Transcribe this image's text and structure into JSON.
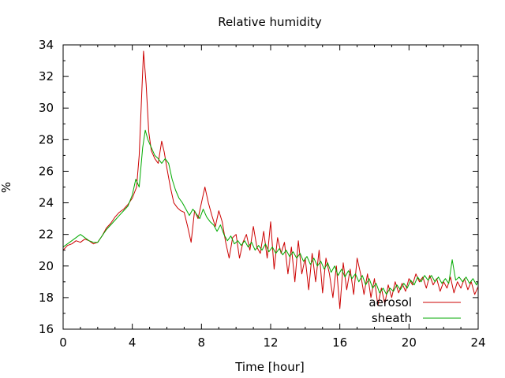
{
  "chart_data": {
    "type": "line",
    "title": "Relative humidity",
    "xlabel": "Time [hour]",
    "ylabel": "%",
    "xlim": [
      0,
      24
    ],
    "ylim": [
      16,
      34
    ],
    "x_ticks": [
      0,
      4,
      8,
      12,
      16,
      20,
      24
    ],
    "y_ticks": [
      16,
      18,
      20,
      22,
      24,
      26,
      28,
      30,
      32,
      34
    ],
    "grid": false,
    "legend_position": "bottom-right",
    "series": [
      {
        "name": "aerosol",
        "color": "#cc0000",
        "points": [
          [
            0.0,
            21.0
          ],
          [
            0.25,
            21.3
          ],
          [
            0.5,
            21.4
          ],
          [
            0.75,
            21.6
          ],
          [
            1.0,
            21.5
          ],
          [
            1.25,
            21.7
          ],
          [
            1.5,
            21.6
          ],
          [
            1.75,
            21.4
          ],
          [
            2.0,
            21.5
          ],
          [
            2.25,
            21.9
          ],
          [
            2.5,
            22.4
          ],
          [
            2.75,
            22.7
          ],
          [
            3.0,
            23.1
          ],
          [
            3.25,
            23.4
          ],
          [
            3.5,
            23.6
          ],
          [
            3.75,
            23.9
          ],
          [
            4.0,
            24.3
          ],
          [
            4.25,
            25.0
          ],
          [
            4.4,
            27.0
          ],
          [
            4.55,
            31.0
          ],
          [
            4.65,
            33.6
          ],
          [
            4.8,
            31.5
          ],
          [
            4.95,
            28.5
          ],
          [
            5.1,
            27.3
          ],
          [
            5.3,
            26.8
          ],
          [
            5.5,
            26.5
          ],
          [
            5.7,
            27.9
          ],
          [
            5.85,
            27.2
          ],
          [
            6.0,
            26.2
          ],
          [
            6.2,
            25.0
          ],
          [
            6.4,
            24.0
          ],
          [
            6.6,
            23.7
          ],
          [
            6.8,
            23.5
          ],
          [
            7.0,
            23.4
          ],
          [
            7.2,
            22.5
          ],
          [
            7.4,
            21.5
          ],
          [
            7.6,
            23.5
          ],
          [
            7.8,
            23.0
          ],
          [
            8.0,
            24.0
          ],
          [
            8.2,
            25.0
          ],
          [
            8.4,
            24.0
          ],
          [
            8.6,
            23.2
          ],
          [
            8.8,
            22.5
          ],
          [
            9.0,
            23.5
          ],
          [
            9.2,
            22.8
          ],
          [
            9.4,
            21.5
          ],
          [
            9.6,
            20.5
          ],
          [
            9.8,
            21.8
          ],
          [
            10.0,
            22.0
          ],
          [
            10.2,
            20.5
          ],
          [
            10.4,
            21.5
          ],
          [
            10.6,
            22.0
          ],
          [
            10.8,
            21.0
          ],
          [
            11.0,
            22.5
          ],
          [
            11.2,
            21.2
          ],
          [
            11.4,
            20.8
          ],
          [
            11.6,
            22.2
          ],
          [
            11.8,
            20.5
          ],
          [
            12.0,
            22.8
          ],
          [
            12.2,
            19.8
          ],
          [
            12.4,
            21.8
          ],
          [
            12.6,
            20.8
          ],
          [
            12.8,
            21.5
          ],
          [
            13.0,
            19.5
          ],
          [
            13.2,
            21.2
          ],
          [
            13.4,
            19.0
          ],
          [
            13.6,
            21.6
          ],
          [
            13.8,
            19.5
          ],
          [
            14.0,
            20.5
          ],
          [
            14.2,
            18.5
          ],
          [
            14.4,
            20.8
          ],
          [
            14.6,
            19.0
          ],
          [
            14.8,
            21.0
          ],
          [
            15.0,
            18.3
          ],
          [
            15.2,
            20.5
          ],
          [
            15.4,
            19.5
          ],
          [
            15.6,
            18.0
          ],
          [
            15.8,
            20.0
          ],
          [
            16.0,
            17.3
          ],
          [
            16.2,
            20.2
          ],
          [
            16.4,
            18.5
          ],
          [
            16.6,
            19.8
          ],
          [
            16.8,
            18.2
          ],
          [
            17.0,
            20.5
          ],
          [
            17.2,
            19.5
          ],
          [
            17.4,
            18.2
          ],
          [
            17.6,
            19.5
          ],
          [
            17.8,
            18.0
          ],
          [
            18.0,
            19.2
          ],
          [
            18.2,
            17.5
          ],
          [
            18.4,
            18.6
          ],
          [
            18.6,
            17.6
          ],
          [
            18.8,
            18.8
          ],
          [
            19.0,
            18.0
          ],
          [
            19.2,
            19.0
          ],
          [
            19.4,
            18.3
          ],
          [
            19.6,
            18.9
          ],
          [
            19.8,
            18.4
          ],
          [
            20.0,
            19.2
          ],
          [
            20.2,
            18.8
          ],
          [
            20.4,
            19.5
          ],
          [
            20.6,
            19.0
          ],
          [
            20.8,
            19.3
          ],
          [
            21.0,
            18.6
          ],
          [
            21.2,
            19.4
          ],
          [
            21.4,
            18.8
          ],
          [
            21.6,
            19.2
          ],
          [
            21.8,
            18.4
          ],
          [
            22.0,
            19.0
          ],
          [
            22.2,
            18.6
          ],
          [
            22.4,
            19.3
          ],
          [
            22.6,
            18.3
          ],
          [
            22.8,
            19.0
          ],
          [
            23.0,
            18.6
          ],
          [
            23.2,
            19.2
          ],
          [
            23.4,
            18.5
          ],
          [
            23.6,
            19.0
          ],
          [
            23.8,
            18.2
          ],
          [
            24.0,
            18.7
          ]
        ]
      },
      {
        "name": "sheath",
        "color": "#00aa00",
        "points": [
          [
            0.0,
            21.2
          ],
          [
            0.25,
            21.4
          ],
          [
            0.5,
            21.6
          ],
          [
            0.75,
            21.8
          ],
          [
            1.0,
            22.0
          ],
          [
            1.25,
            21.8
          ],
          [
            1.5,
            21.6
          ],
          [
            1.75,
            21.5
          ],
          [
            2.0,
            21.5
          ],
          [
            2.25,
            21.9
          ],
          [
            2.5,
            22.3
          ],
          [
            2.75,
            22.6
          ],
          [
            3.0,
            22.9
          ],
          [
            3.25,
            23.2
          ],
          [
            3.5,
            23.5
          ],
          [
            3.75,
            23.8
          ],
          [
            4.0,
            24.5
          ],
          [
            4.2,
            25.5
          ],
          [
            4.4,
            25.0
          ],
          [
            4.6,
            27.5
          ],
          [
            4.75,
            28.6
          ],
          [
            4.9,
            28.0
          ],
          [
            5.1,
            27.5
          ],
          [
            5.3,
            27.0
          ],
          [
            5.5,
            26.8
          ],
          [
            5.7,
            26.5
          ],
          [
            5.9,
            26.8
          ],
          [
            6.1,
            26.5
          ],
          [
            6.3,
            25.5
          ],
          [
            6.5,
            24.8
          ],
          [
            6.7,
            24.3
          ],
          [
            6.9,
            24.0
          ],
          [
            7.1,
            23.6
          ],
          [
            7.3,
            23.2
          ],
          [
            7.5,
            23.6
          ],
          [
            7.7,
            23.3
          ],
          [
            7.9,
            23.0
          ],
          [
            8.1,
            23.6
          ],
          [
            8.3,
            23.1
          ],
          [
            8.5,
            22.8
          ],
          [
            8.7,
            22.6
          ],
          [
            8.9,
            22.2
          ],
          [
            9.1,
            22.6
          ],
          [
            9.3,
            22.0
          ],
          [
            9.5,
            21.6
          ],
          [
            9.7,
            21.9
          ],
          [
            9.9,
            21.4
          ],
          [
            10.1,
            21.6
          ],
          [
            10.3,
            21.3
          ],
          [
            10.5,
            21.6
          ],
          [
            10.7,
            21.2
          ],
          [
            10.9,
            21.5
          ],
          [
            11.1,
            21.0
          ],
          [
            11.3,
            21.3
          ],
          [
            11.5,
            21.0
          ],
          [
            11.7,
            21.4
          ],
          [
            11.9,
            20.9
          ],
          [
            12.1,
            21.2
          ],
          [
            12.3,
            20.8
          ],
          [
            12.5,
            21.1
          ],
          [
            12.7,
            20.7
          ],
          [
            12.9,
            21.0
          ],
          [
            13.1,
            20.6
          ],
          [
            13.3,
            20.9
          ],
          [
            13.5,
            20.5
          ],
          [
            13.7,
            20.8
          ],
          [
            13.9,
            20.3
          ],
          [
            14.1,
            20.6
          ],
          [
            14.3,
            20.1
          ],
          [
            14.5,
            20.5
          ],
          [
            14.7,
            20.0
          ],
          [
            14.9,
            20.3
          ],
          [
            15.1,
            19.8
          ],
          [
            15.3,
            20.2
          ],
          [
            15.5,
            19.6
          ],
          [
            15.7,
            20.0
          ],
          [
            15.9,
            19.4
          ],
          [
            16.1,
            19.8
          ],
          [
            16.3,
            19.3
          ],
          [
            16.5,
            19.7
          ],
          [
            16.7,
            19.2
          ],
          [
            16.9,
            19.5
          ],
          [
            17.1,
            19.0
          ],
          [
            17.3,
            19.4
          ],
          [
            17.5,
            18.8
          ],
          [
            17.7,
            19.2
          ],
          [
            17.9,
            18.6
          ],
          [
            18.1,
            18.9
          ],
          [
            18.3,
            18.3
          ],
          [
            18.5,
            18.6
          ],
          [
            18.7,
            18.2
          ],
          [
            18.9,
            18.6
          ],
          [
            19.1,
            18.4
          ],
          [
            19.3,
            18.8
          ],
          [
            19.5,
            18.5
          ],
          [
            19.7,
            18.9
          ],
          [
            19.9,
            18.6
          ],
          [
            20.1,
            19.1
          ],
          [
            20.3,
            18.8
          ],
          [
            20.5,
            19.3
          ],
          [
            20.7,
            19.0
          ],
          [
            20.9,
            19.4
          ],
          [
            21.1,
            19.1
          ],
          [
            21.3,
            19.4
          ],
          [
            21.5,
            19.0
          ],
          [
            21.7,
            19.3
          ],
          [
            21.9,
            18.9
          ],
          [
            22.1,
            19.2
          ],
          [
            22.3,
            18.9
          ],
          [
            22.5,
            20.4
          ],
          [
            22.7,
            19.1
          ],
          [
            22.9,
            19.3
          ],
          [
            23.1,
            19.0
          ],
          [
            23.3,
            19.3
          ],
          [
            23.5,
            18.9
          ],
          [
            23.7,
            19.2
          ],
          [
            23.9,
            18.8
          ],
          [
            24.0,
            19.0
          ]
        ]
      }
    ]
  }
}
